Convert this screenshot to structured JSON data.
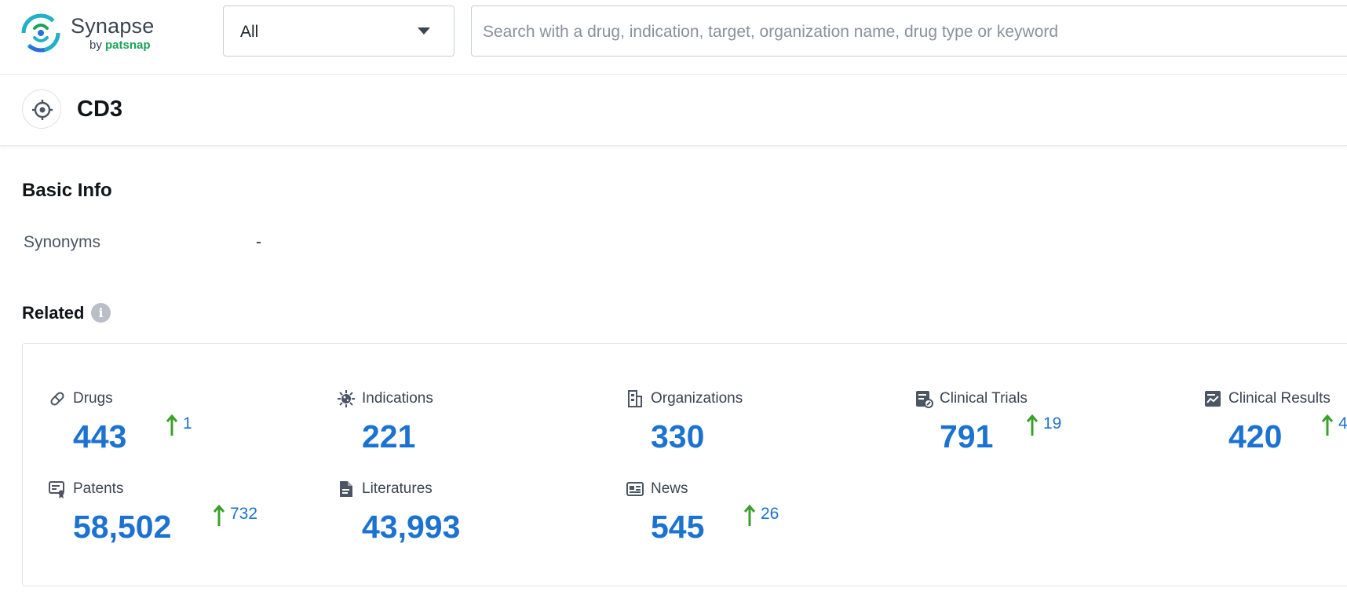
{
  "app": {
    "logo_name": "Synapse",
    "logo_by": "by",
    "logo_brand": "patsnap",
    "accent_color": "#1c72d0",
    "up_color": "#3aa02a"
  },
  "search": {
    "scope": "All",
    "placeholder": "Search with a drug, indication, target, organization name, drug type or keyword"
  },
  "entity": {
    "title": "CD3",
    "icon": "target-icon"
  },
  "basic_info": {
    "title": "Basic Info",
    "synonyms_label": "Synonyms",
    "synonyms_value": "-"
  },
  "related": {
    "title": "Related",
    "info_icon": "i",
    "stats": {
      "drugs": {
        "label": "Drugs",
        "value": "443",
        "delta": "1",
        "icon": "pill-icon"
      },
      "indications": {
        "label": "Indications",
        "value": "221",
        "icon": "virus-icon"
      },
      "organizations": {
        "label": "Organizations",
        "value": "330",
        "icon": "building-icon"
      },
      "clinical_trials": {
        "label": "Clinical Trials",
        "value": "791",
        "delta": "19",
        "icon": "clinical-trials-icon"
      },
      "clinical_results": {
        "label": "Clinical Results",
        "value": "420",
        "delta": "4",
        "icon": "clinical-results-icon"
      },
      "patents": {
        "label": "Patents",
        "value": "58,502",
        "delta": "732",
        "icon": "patent-icon"
      },
      "literatures": {
        "label": "Literatures",
        "value": "43,993",
        "icon": "document-icon"
      },
      "news": {
        "label": "News",
        "value": "545",
        "delta": "26",
        "icon": "newspaper-icon"
      }
    }
  }
}
